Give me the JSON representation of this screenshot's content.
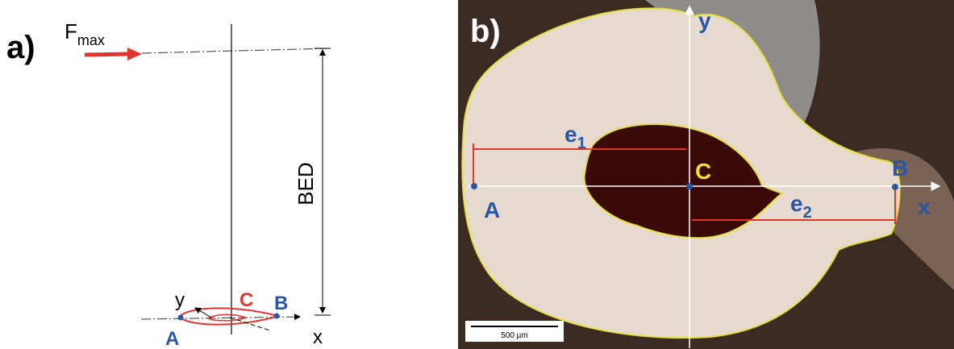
{
  "panel_a": {
    "label": "a)",
    "force": {
      "symbol": "F",
      "subscript": "max"
    },
    "dimension": "BED",
    "axis_y": "y",
    "axis_x": "x",
    "point_c": "C",
    "point_b": "B",
    "point_a": "A"
  },
  "panel_b": {
    "label": "b)",
    "axis_y": "y",
    "axis_x": "x",
    "e1": {
      "symbol": "e",
      "subscript": "1"
    },
    "e2": {
      "symbol": "e",
      "subscript": "2"
    },
    "point_c": "C",
    "point_a": "A",
    "point_b": "B",
    "scale_bar": "500 µm"
  }
}
